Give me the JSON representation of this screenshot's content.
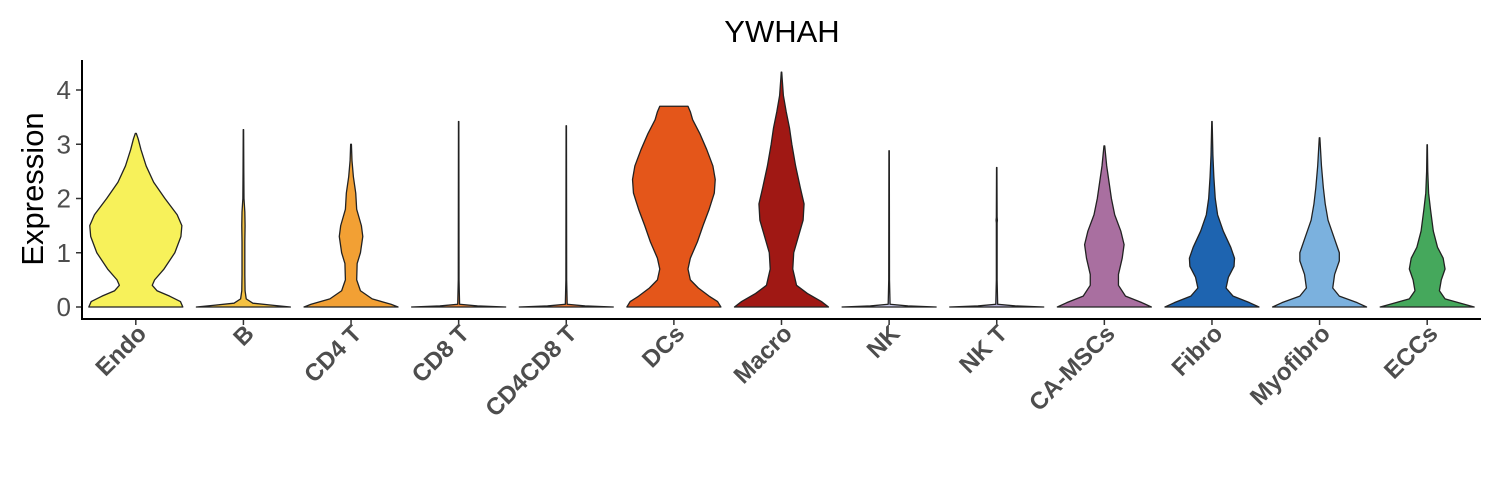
{
  "chart_data": {
    "type": "violin",
    "title": "YWHAH",
    "xlabel": "",
    "ylabel": "Expression",
    "ylim": [
      -0.2,
      4.35
    ],
    "yticks": [
      0,
      1,
      2,
      3,
      4
    ],
    "grid": false,
    "legend": "none",
    "categories": [
      "Endo",
      "B",
      "CD4 T",
      "CD8 T",
      "CD4CD8 T",
      "DCs",
      "Macro",
      "NK",
      "NK T",
      "CA-MSCs",
      "Fibro",
      "Myofibro",
      "ECCs"
    ],
    "series": [
      {
        "category": "Endo",
        "color": "#F7F15A",
        "max": 3.2,
        "profile": [
          [
            0,
            1.0
          ],
          [
            0.1,
            0.95
          ],
          [
            0.2,
            0.72
          ],
          [
            0.3,
            0.45
          ],
          [
            0.4,
            0.35
          ],
          [
            0.5,
            0.4
          ],
          [
            0.7,
            0.6
          ],
          [
            1.0,
            0.83
          ],
          [
            1.3,
            0.96
          ],
          [
            1.5,
            0.98
          ],
          [
            1.7,
            0.88
          ],
          [
            2.0,
            0.62
          ],
          [
            2.3,
            0.38
          ],
          [
            2.6,
            0.22
          ],
          [
            2.9,
            0.11
          ],
          [
            3.1,
            0.05
          ],
          [
            3.2,
            0.01
          ]
        ]
      },
      {
        "category": "B",
        "color": "#F5C242",
        "max": 3.27,
        "profile": [
          [
            0,
            1.0
          ],
          [
            0.03,
            0.65
          ],
          [
            0.07,
            0.2
          ],
          [
            0.15,
            0.06
          ],
          [
            0.3,
            0.035
          ],
          [
            0.6,
            0.03
          ],
          [
            1.2,
            0.03
          ],
          [
            1.5,
            0.035
          ],
          [
            1.75,
            0.03
          ],
          [
            2.0,
            0.012
          ],
          [
            2.5,
            0.008
          ],
          [
            3.27,
            0.004
          ]
        ]
      },
      {
        "category": "CD4 T",
        "color": "#F2A034",
        "max": 3.0,
        "profile": [
          [
            0,
            1.0
          ],
          [
            0.05,
            0.85
          ],
          [
            0.15,
            0.45
          ],
          [
            0.3,
            0.2
          ],
          [
            0.5,
            0.12
          ],
          [
            0.8,
            0.13
          ],
          [
            1.0,
            0.2
          ],
          [
            1.3,
            0.25
          ],
          [
            1.5,
            0.22
          ],
          [
            1.8,
            0.12
          ],
          [
            2.1,
            0.1
          ],
          [
            2.4,
            0.05
          ],
          [
            2.7,
            0.02
          ],
          [
            3.0,
            0.008
          ]
        ]
      },
      {
        "category": "CD8 T",
        "color": "#F08A3A",
        "max": 3.42,
        "profile": [
          [
            0,
            1.0
          ],
          [
            0.02,
            0.4
          ],
          [
            0.05,
            0.02
          ],
          [
            0.5,
            0.008
          ],
          [
            3.42,
            0.004
          ]
        ]
      },
      {
        "category": "CD4CD8 T",
        "color": "#EC7A36",
        "max": 3.34,
        "profile": [
          [
            0,
            1.0
          ],
          [
            0.02,
            0.4
          ],
          [
            0.05,
            0.02
          ],
          [
            0.5,
            0.008
          ],
          [
            3.34,
            0.004
          ]
        ]
      },
      {
        "category": "DCs",
        "color": "#E4561A",
        "max": 3.7,
        "profile": [
          [
            0,
            1.0
          ],
          [
            0.1,
            0.93
          ],
          [
            0.2,
            0.75
          ],
          [
            0.35,
            0.52
          ],
          [
            0.5,
            0.35
          ],
          [
            0.7,
            0.3
          ],
          [
            0.9,
            0.35
          ],
          [
            1.2,
            0.5
          ],
          [
            1.5,
            0.62
          ],
          [
            1.8,
            0.75
          ],
          [
            2.1,
            0.86
          ],
          [
            2.35,
            0.88
          ],
          [
            2.6,
            0.83
          ],
          [
            2.9,
            0.7
          ],
          [
            3.2,
            0.55
          ],
          [
            3.45,
            0.4
          ],
          [
            3.6,
            0.35
          ],
          [
            3.7,
            0.3
          ]
        ]
      },
      {
        "category": "Macro",
        "color": "#A01814",
        "max": 4.33,
        "profile": [
          [
            0,
            1.0
          ],
          [
            0.1,
            0.85
          ],
          [
            0.25,
            0.55
          ],
          [
            0.4,
            0.32
          ],
          [
            0.7,
            0.24
          ],
          [
            1.0,
            0.26
          ],
          [
            1.3,
            0.36
          ],
          [
            1.6,
            0.46
          ],
          [
            1.9,
            0.48
          ],
          [
            2.2,
            0.4
          ],
          [
            2.6,
            0.3
          ],
          [
            3.0,
            0.22
          ],
          [
            3.3,
            0.17
          ],
          [
            3.6,
            0.1
          ],
          [
            3.9,
            0.04
          ],
          [
            4.2,
            0.015
          ],
          [
            4.33,
            0.005
          ]
        ]
      },
      {
        "category": "NK",
        "color": "#C9C9E8",
        "max": 2.88,
        "profile": [
          [
            0,
            1.0
          ],
          [
            0.02,
            0.4
          ],
          [
            0.05,
            0.02
          ],
          [
            0.5,
            0.008
          ],
          [
            2.88,
            0.004
          ]
        ]
      },
      {
        "category": "NK T",
        "color": "#B9B3D8",
        "max": 2.57,
        "profile": [
          [
            0,
            1.0
          ],
          [
            0.02,
            0.4
          ],
          [
            0.05,
            0.02
          ],
          [
            0.5,
            0.008
          ],
          [
            1.55,
            0.008
          ],
          [
            1.6,
            0.014
          ],
          [
            1.65,
            0.008
          ],
          [
            2.57,
            0.004
          ]
        ]
      },
      {
        "category": "CA-MSCs",
        "color": "#A96FA0",
        "max": 2.97,
        "profile": [
          [
            0,
            1.0
          ],
          [
            0.08,
            0.8
          ],
          [
            0.2,
            0.45
          ],
          [
            0.4,
            0.3
          ],
          [
            0.6,
            0.3
          ],
          [
            0.9,
            0.38
          ],
          [
            1.15,
            0.42
          ],
          [
            1.4,
            0.35
          ],
          [
            1.7,
            0.22
          ],
          [
            2.0,
            0.15
          ],
          [
            2.3,
            0.1
          ],
          [
            2.6,
            0.05
          ],
          [
            2.97,
            0.008
          ]
        ]
      },
      {
        "category": "Fibro",
        "color": "#1E64B0",
        "max": 3.42,
        "profile": [
          [
            0,
            1.0
          ],
          [
            0.08,
            0.8
          ],
          [
            0.2,
            0.45
          ],
          [
            0.35,
            0.3
          ],
          [
            0.55,
            0.35
          ],
          [
            0.75,
            0.47
          ],
          [
            0.9,
            0.48
          ],
          [
            1.1,
            0.4
          ],
          [
            1.4,
            0.24
          ],
          [
            1.7,
            0.12
          ],
          [
            2.0,
            0.07
          ],
          [
            2.4,
            0.04
          ],
          [
            2.8,
            0.02
          ],
          [
            3.42,
            0.004
          ]
        ]
      },
      {
        "category": "Myofibro",
        "color": "#7BB1DE",
        "max": 3.12,
        "profile": [
          [
            0,
            1.0
          ],
          [
            0.08,
            0.8
          ],
          [
            0.2,
            0.42
          ],
          [
            0.35,
            0.28
          ],
          [
            0.6,
            0.32
          ],
          [
            0.85,
            0.42
          ],
          [
            1.0,
            0.42
          ],
          [
            1.3,
            0.3
          ],
          [
            1.6,
            0.18
          ],
          [
            1.9,
            0.12
          ],
          [
            2.2,
            0.08
          ],
          [
            2.6,
            0.04
          ],
          [
            3.12,
            0.006
          ]
        ]
      },
      {
        "category": "ECCs",
        "color": "#45A85C",
        "max": 2.99,
        "profile": [
          [
            0,
            1.0
          ],
          [
            0.06,
            0.75
          ],
          [
            0.15,
            0.38
          ],
          [
            0.3,
            0.26
          ],
          [
            0.5,
            0.3
          ],
          [
            0.7,
            0.38
          ],
          [
            0.9,
            0.34
          ],
          [
            1.1,
            0.22
          ],
          [
            1.4,
            0.13
          ],
          [
            1.8,
            0.07
          ],
          [
            2.1,
            0.03
          ],
          [
            2.5,
            0.012
          ],
          [
            2.99,
            0.004
          ]
        ]
      }
    ]
  }
}
